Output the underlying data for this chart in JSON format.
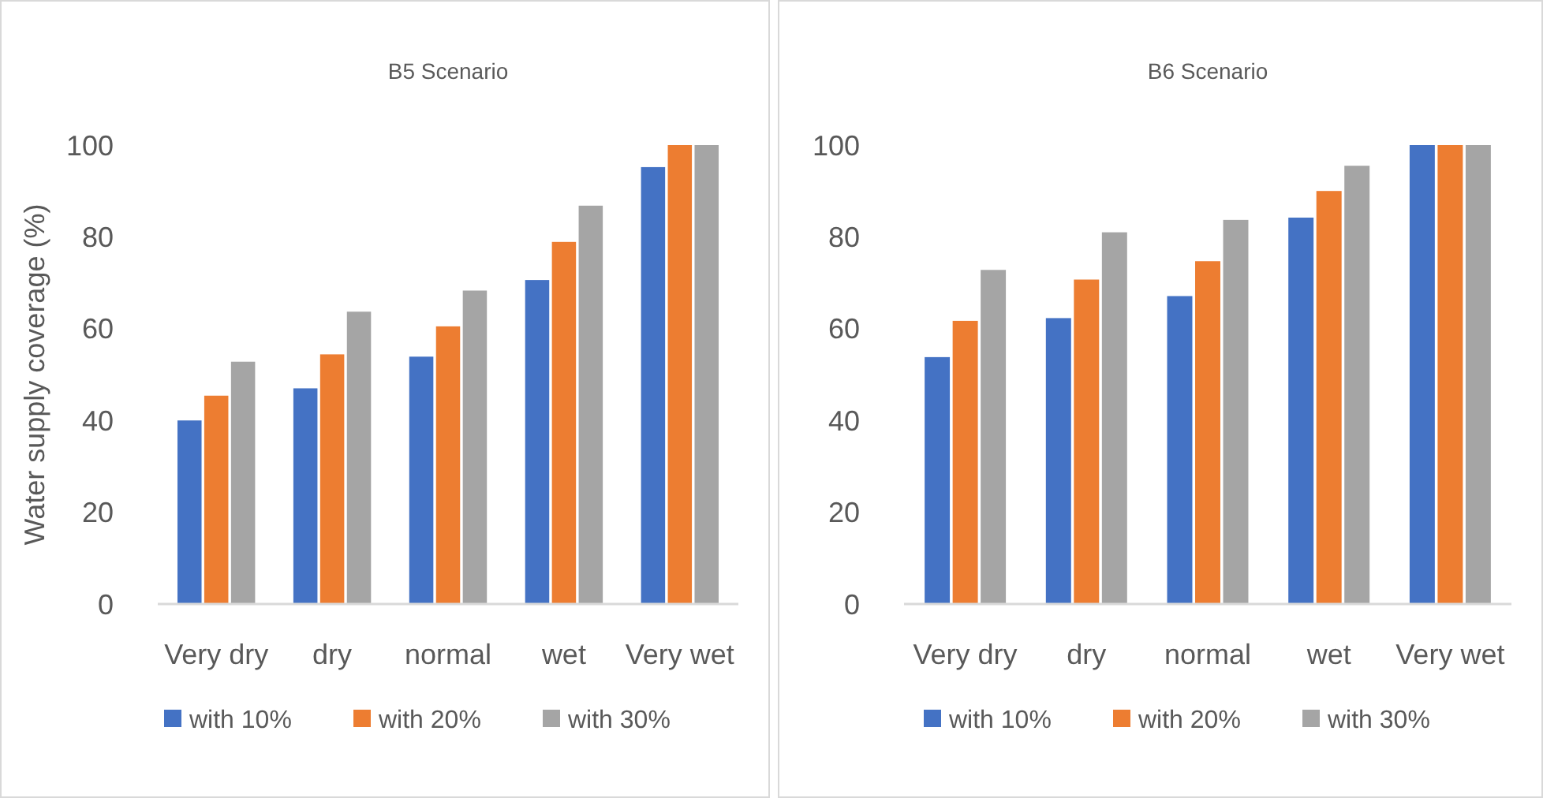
{
  "chart_data": [
    {
      "type": "bar",
      "title": "B5 Scenario",
      "ylabel": "Water supply coverage (%)",
      "categories": [
        "Very dry",
        "dry",
        "normal",
        "wet",
        "Very wet"
      ],
      "series": [
        {
          "name": "with 10%",
          "color": "#4472c4",
          "values": [
            40,
            47,
            53.9,
            70.6,
            95.2
          ]
        },
        {
          "name": "with 20%",
          "color": "#ed7d31",
          "values": [
            45.4,
            54.4,
            60.5,
            78.9,
            100
          ]
        },
        {
          "name": "with 30%",
          "color": "#a5a5a5",
          "values": [
            52.8,
            63.7,
            68.3,
            86.8,
            100
          ]
        }
      ],
      "ylim": [
        0,
        100
      ],
      "yticks": [
        0,
        20,
        40,
        60,
        80,
        100
      ],
      "grid": false,
      "legend": "bottom"
    },
    {
      "type": "bar",
      "title": "B6 Scenario",
      "categories": [
        "Very dry",
        "dry",
        "normal",
        "wet",
        "Very wet"
      ],
      "series": [
        {
          "name": "with 10%",
          "color": "#4472c4",
          "values": [
            53.8,
            62.3,
            67.1,
            84.2,
            100
          ]
        },
        {
          "name": "with 20%",
          "color": "#ed7d31",
          "values": [
            61.7,
            70.7,
            74.7,
            90,
            100
          ]
        },
        {
          "name": "with 30%",
          "color": "#a5a5a5",
          "values": [
            72.8,
            81,
            83.7,
            95.5,
            100
          ]
        }
      ],
      "ylim": [
        0,
        100
      ],
      "yticks": [
        0,
        20,
        40,
        60,
        80,
        100
      ],
      "grid": false,
      "legend": "bottom"
    }
  ]
}
